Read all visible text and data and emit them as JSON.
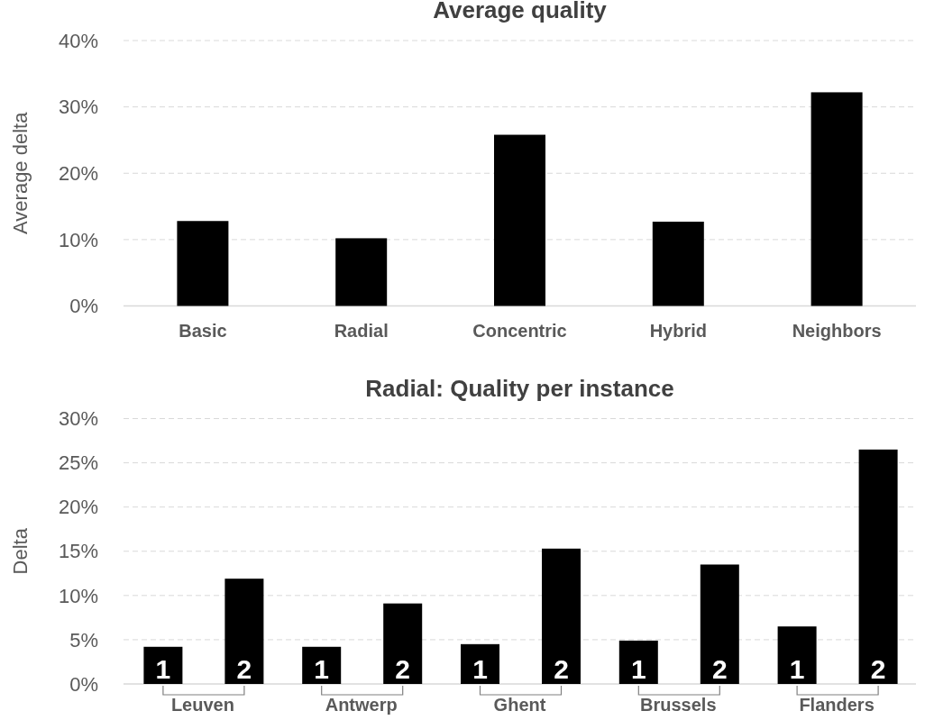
{
  "chart_data": [
    {
      "type": "bar",
      "title": "Average quality",
      "ylabel": "Average delta",
      "categories": [
        "Basic",
        "Radial",
        "Concentric",
        "Hybrid",
        "Neighbors"
      ],
      "values": [
        12.8,
        10.2,
        25.8,
        12.7,
        32.2
      ],
      "color": "#000000",
      "ylim": [
        0,
        40
      ],
      "yticks": [
        {
          "value": 0,
          "label": "0%"
        },
        {
          "value": 10,
          "label": "10%"
        },
        {
          "value": 20,
          "label": "20%"
        },
        {
          "value": 30,
          "label": "30%"
        },
        {
          "value": 40,
          "label": "40%"
        }
      ],
      "grid": "y"
    },
    {
      "type": "bar",
      "title": "Radial: Quality per instance",
      "ylabel": "Delta",
      "categories": [
        "Leuven",
        "Antwerp",
        "Ghent",
        "Brussels",
        "Flanders"
      ],
      "series": [
        {
          "name": "1",
          "color": "#000000",
          "values": [
            4.2,
            4.2,
            4.5,
            4.9,
            6.5
          ]
        },
        {
          "name": "2",
          "color": "#000000",
          "values": [
            11.9,
            9.1,
            15.3,
            13.5,
            26.5
          ]
        }
      ],
      "ylim": [
        0,
        30
      ],
      "yticks": [
        {
          "value": 0,
          "label": "0%"
        },
        {
          "value": 5,
          "label": "5%"
        },
        {
          "value": 10,
          "label": "10%"
        },
        {
          "value": 15,
          "label": "15%"
        },
        {
          "value": 20,
          "label": "20%"
        },
        {
          "value": 25,
          "label": "25%"
        },
        {
          "value": 30,
          "label": "30%"
        }
      ],
      "grid": "y"
    }
  ]
}
